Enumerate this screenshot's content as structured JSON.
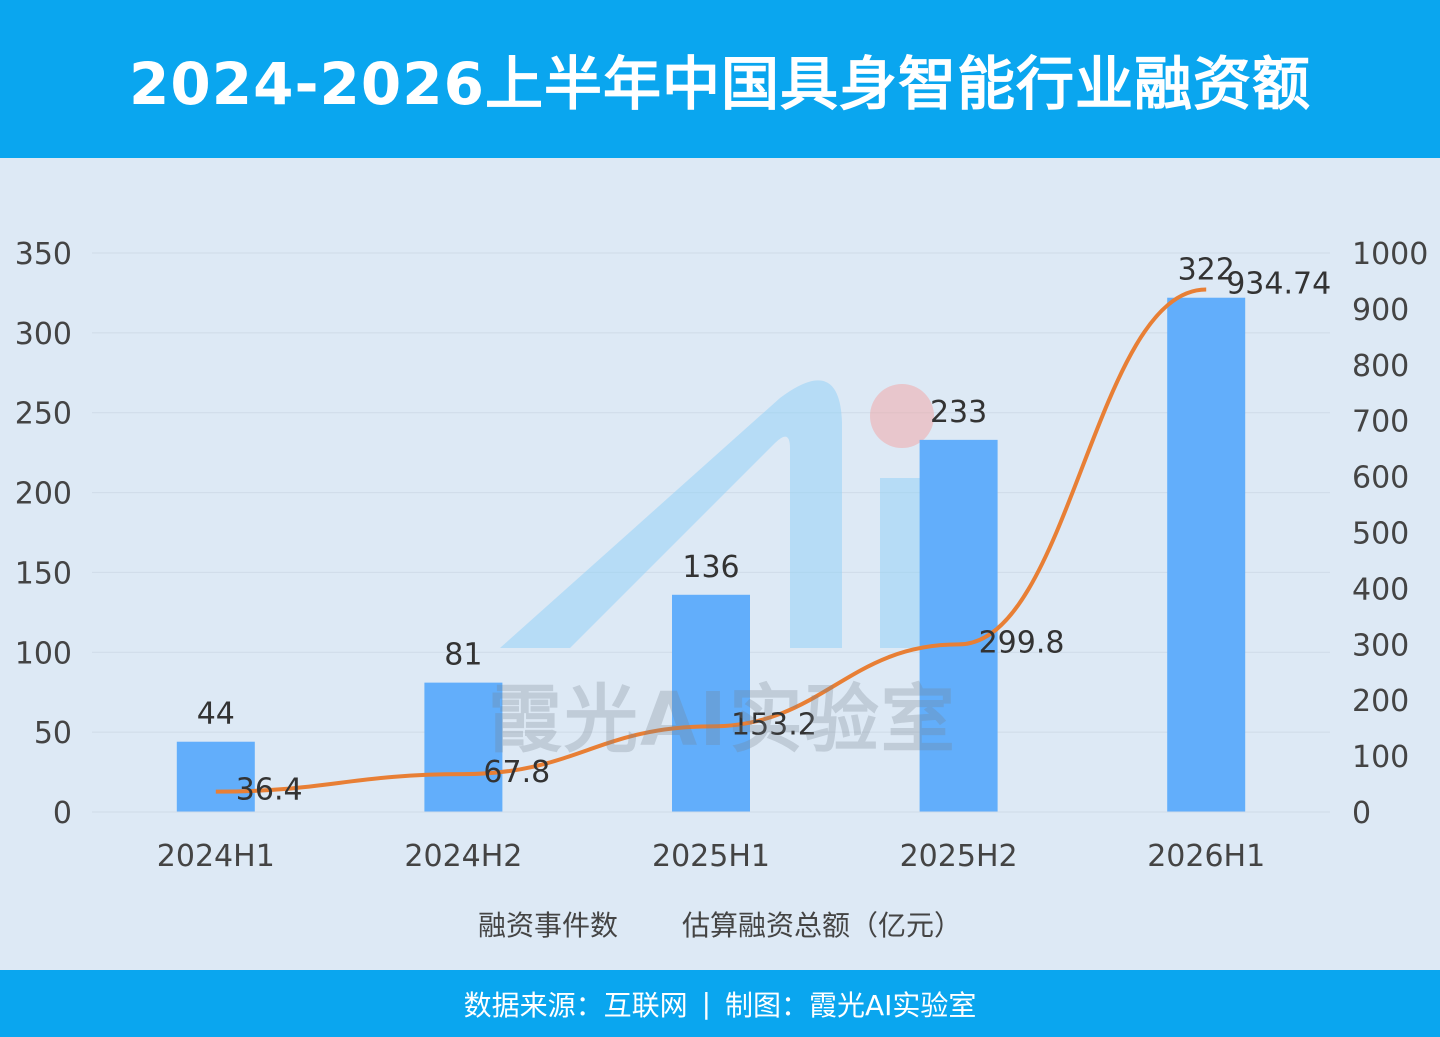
{
  "header": {
    "title": "2024-2026上半年中国具身智能行业融资额"
  },
  "footer": {
    "source": "数据来源：互联网",
    "separator": "|",
    "credit": "制图：霞光AI实验室"
  },
  "watermark": {
    "text": "霞光AI实验室"
  },
  "colors": {
    "bar": "#62aefb",
    "line": "#e87f35",
    "header": "#0aa6ef",
    "background": "#dde9f5"
  },
  "chart_data": {
    "type": "bar",
    "title": "2024-2026上半年中国具身智能行业融资额",
    "categories": [
      "2024H1",
      "2024H2",
      "2025H1",
      "2025H2",
      "2026H1"
    ],
    "series": [
      {
        "name": "融资事件数",
        "type": "bar",
        "axis": "left",
        "values": [
          44,
          81,
          136,
          233,
          322
        ]
      },
      {
        "name": "估算融资总额（亿元）",
        "type": "line",
        "axis": "right",
        "values": [
          36.4,
          67.8,
          153.2,
          299.8,
          934.74
        ]
      }
    ],
    "yleft": {
      "min": 0,
      "max": 350,
      "ticks": [
        0,
        50,
        100,
        150,
        200,
        250,
        300,
        350
      ]
    },
    "yright": {
      "min": 0,
      "max": 1000,
      "ticks": [
        0,
        100,
        200,
        300,
        400,
        500,
        600,
        700,
        800,
        900,
        1000
      ]
    },
    "legend_position": "bottom",
    "grid": true
  }
}
